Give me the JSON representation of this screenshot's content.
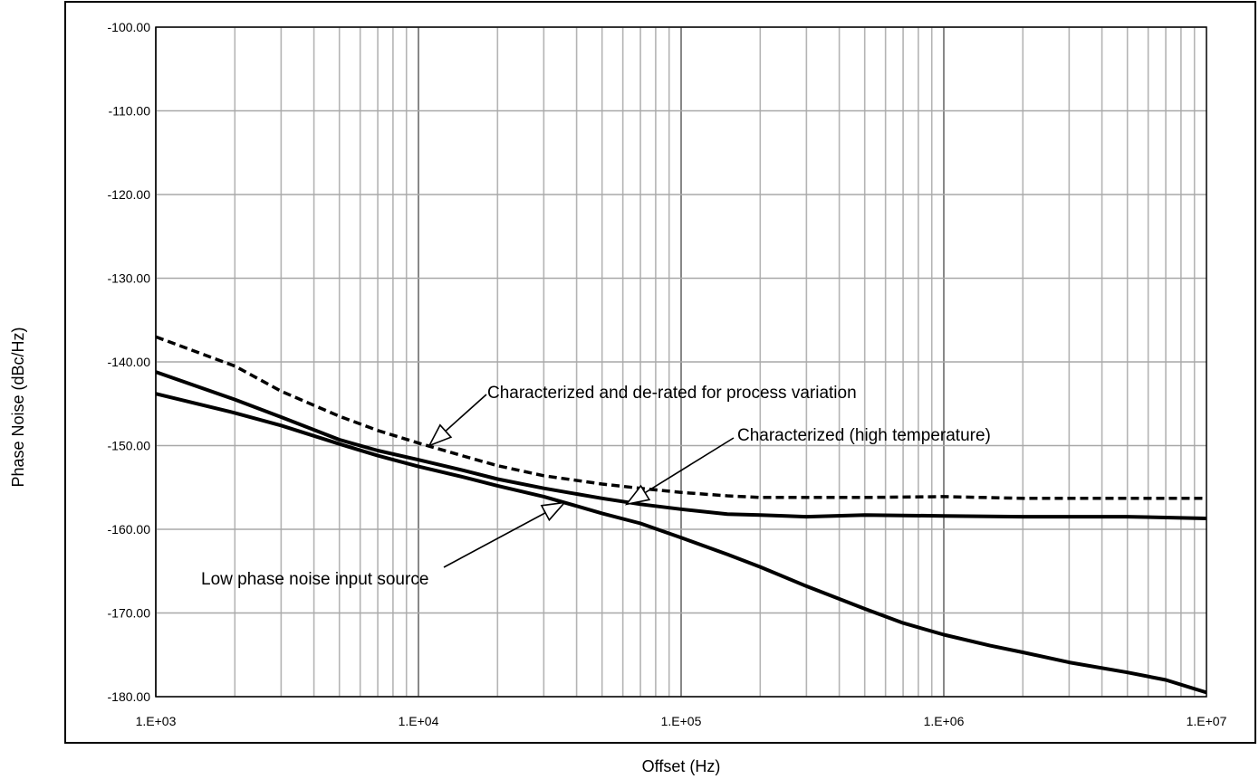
{
  "chart_data": {
    "type": "line",
    "title": "",
    "xlabel": "Offset (Hz)",
    "ylabel": "Phase Noise (dBc/Hz)",
    "x_scale": "log",
    "xlim": [
      1000,
      10000000
    ],
    "ylim": [
      -180,
      -100
    ],
    "grid": true,
    "x_tick_labels": [
      "1.E+03",
      "1.E+04",
      "1.E+05",
      "1.E+06",
      "1.E+07"
    ],
    "y_tick_labels": [
      "-100.00",
      "-110.00",
      "-120.00",
      "-130.00",
      "-140.00",
      "-150.00",
      "-160.00",
      "-170.00",
      "-180.00"
    ],
    "series": [
      {
        "style": "dashed",
        "color": "#000000",
        "x": [
          1000,
          2000,
          3000,
          5000,
          7000,
          10000,
          15000,
          20000,
          30000,
          50000,
          70000,
          100000,
          150000,
          200000,
          300000,
          500000,
          1000000,
          2000000,
          5000000,
          10000000
        ],
        "y": [
          -137,
          -140.5,
          -143.5,
          -146.5,
          -148.2,
          -149.7,
          -151.3,
          -152.4,
          -153.6,
          -154.6,
          -155.1,
          -155.6,
          -156.0,
          -156.2,
          -156.2,
          -156.2,
          -156.1,
          -156.3,
          -156.3,
          -156.3
        ]
      },
      {
        "style": "solid",
        "color": "#000000",
        "x": [
          1000,
          2000,
          3000,
          5000,
          7000,
          10000,
          15000,
          20000,
          30000,
          50000,
          70000,
          100000,
          150000,
          200000,
          250000,
          300000,
          500000,
          1000000,
          2000000,
          5000000,
          10000000
        ],
        "y": [
          -141.2,
          -144.5,
          -146.6,
          -149.3,
          -150.6,
          -151.7,
          -153.0,
          -154.0,
          -155.1,
          -156.3,
          -157.0,
          -157.6,
          -158.2,
          -158.3,
          -158.4,
          -158.5,
          -158.3,
          -158.4,
          -158.5,
          -158.5,
          -158.7
        ]
      },
      {
        "style": "solid",
        "color": "#000000",
        "x": [
          1000,
          2000,
          3000,
          5000,
          7000,
          10000,
          15000,
          20000,
          30000,
          50000,
          70000,
          100000,
          150000,
          200000,
          300000,
          500000,
          700000,
          1000000,
          1500000,
          2000000,
          3000000,
          5000000,
          7000000,
          10000000
        ],
        "y": [
          -143.8,
          -146.1,
          -147.6,
          -149.8,
          -151.2,
          -152.5,
          -153.8,
          -154.8,
          -156.1,
          -158.1,
          -159.3,
          -161.0,
          -163.0,
          -164.5,
          -166.8,
          -169.5,
          -171.2,
          -172.6,
          -173.9,
          -174.7,
          -175.9,
          -177.1,
          -178.0,
          -179.5
        ]
      }
    ],
    "annotations": [
      {
        "text": "Characterized and de-rated for process variation",
        "arrow_to": [
          11000,
          -150.0
        ]
      },
      {
        "text": "Characterized (high temperature)",
        "arrow_to": [
          62000,
          -157.0
        ]
      },
      {
        "text": "Low phase noise input source",
        "arrow_to": [
          36000,
          -156.8
        ]
      }
    ]
  }
}
